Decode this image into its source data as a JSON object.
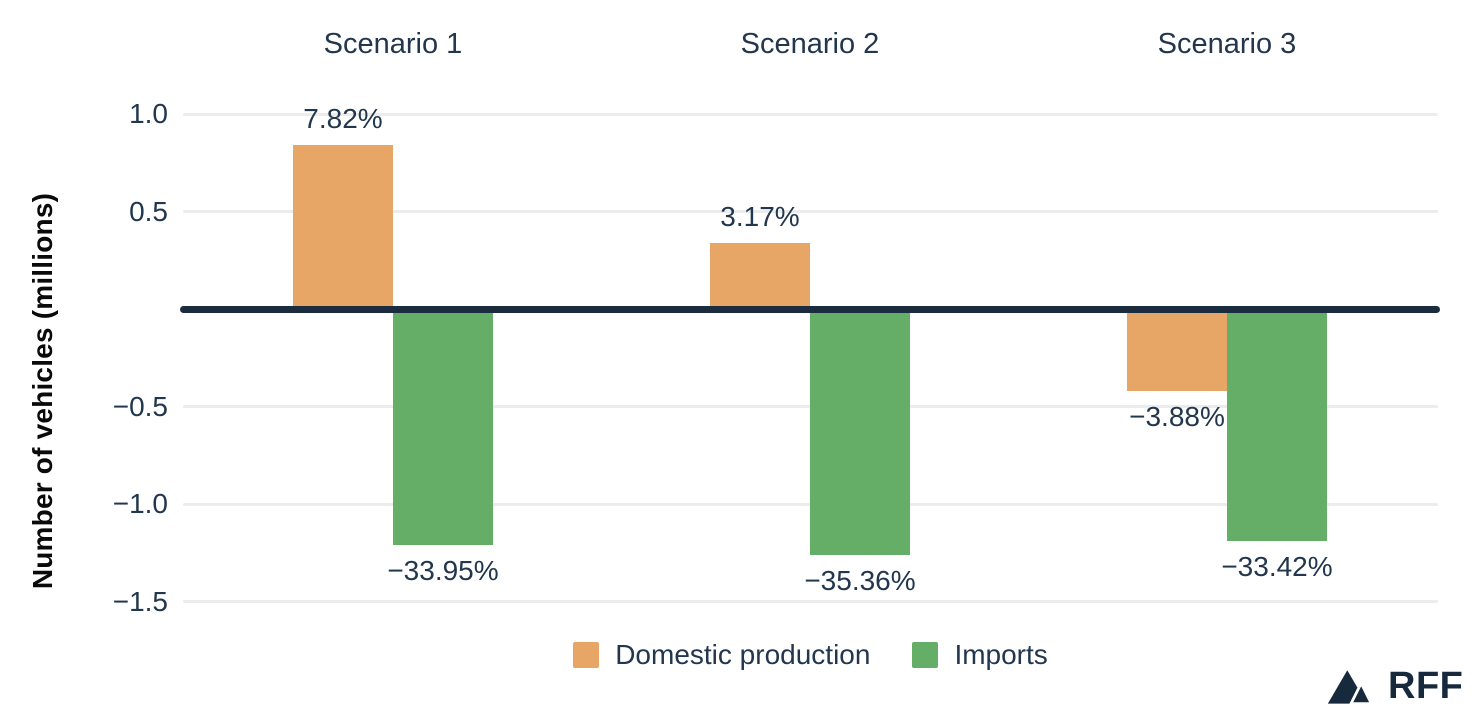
{
  "chart_data": {
    "type": "bar",
    "title": "",
    "ylabel": "Number of vehicles (millions)",
    "categories": [
      "Scenario 1",
      "Scenario 2",
      "Scenario 3"
    ],
    "series": [
      {
        "name": "Domestic production",
        "color": "#e7a566",
        "values_millions": [
          0.84,
          0.34,
          -0.42
        ],
        "value_labels": [
          "7.82%",
          "3.17%",
          "−3.88%"
        ]
      },
      {
        "name": "Imports",
        "color": "#64ae67",
        "values_millions": [
          -1.21,
          -1.26,
          -1.19
        ],
        "value_labels": [
          "−33.95%",
          "−35.36%",
          "−33.42%"
        ]
      }
    ],
    "y_axis": {
      "tick_labels": [
        "1.0",
        "0.5",
        "−0.5",
        "−1.0",
        "−1.5"
      ],
      "tick_values": [
        1.0,
        0.5,
        -0.5,
        -1.0,
        -1.5
      ],
      "range": [
        -1.75,
        1.1
      ]
    },
    "grid": true,
    "zero_line": true,
    "legend_position": "bottom",
    "colors": {
      "axis_text": "#22374d",
      "axis_title": "#0a0a0a",
      "zero_line": "#1b2c3e",
      "gridline": "#ececec"
    }
  },
  "branding": {
    "logo_text": "RFF",
    "logo_icon": "mountains-icon",
    "logo_color": "#16293d"
  }
}
